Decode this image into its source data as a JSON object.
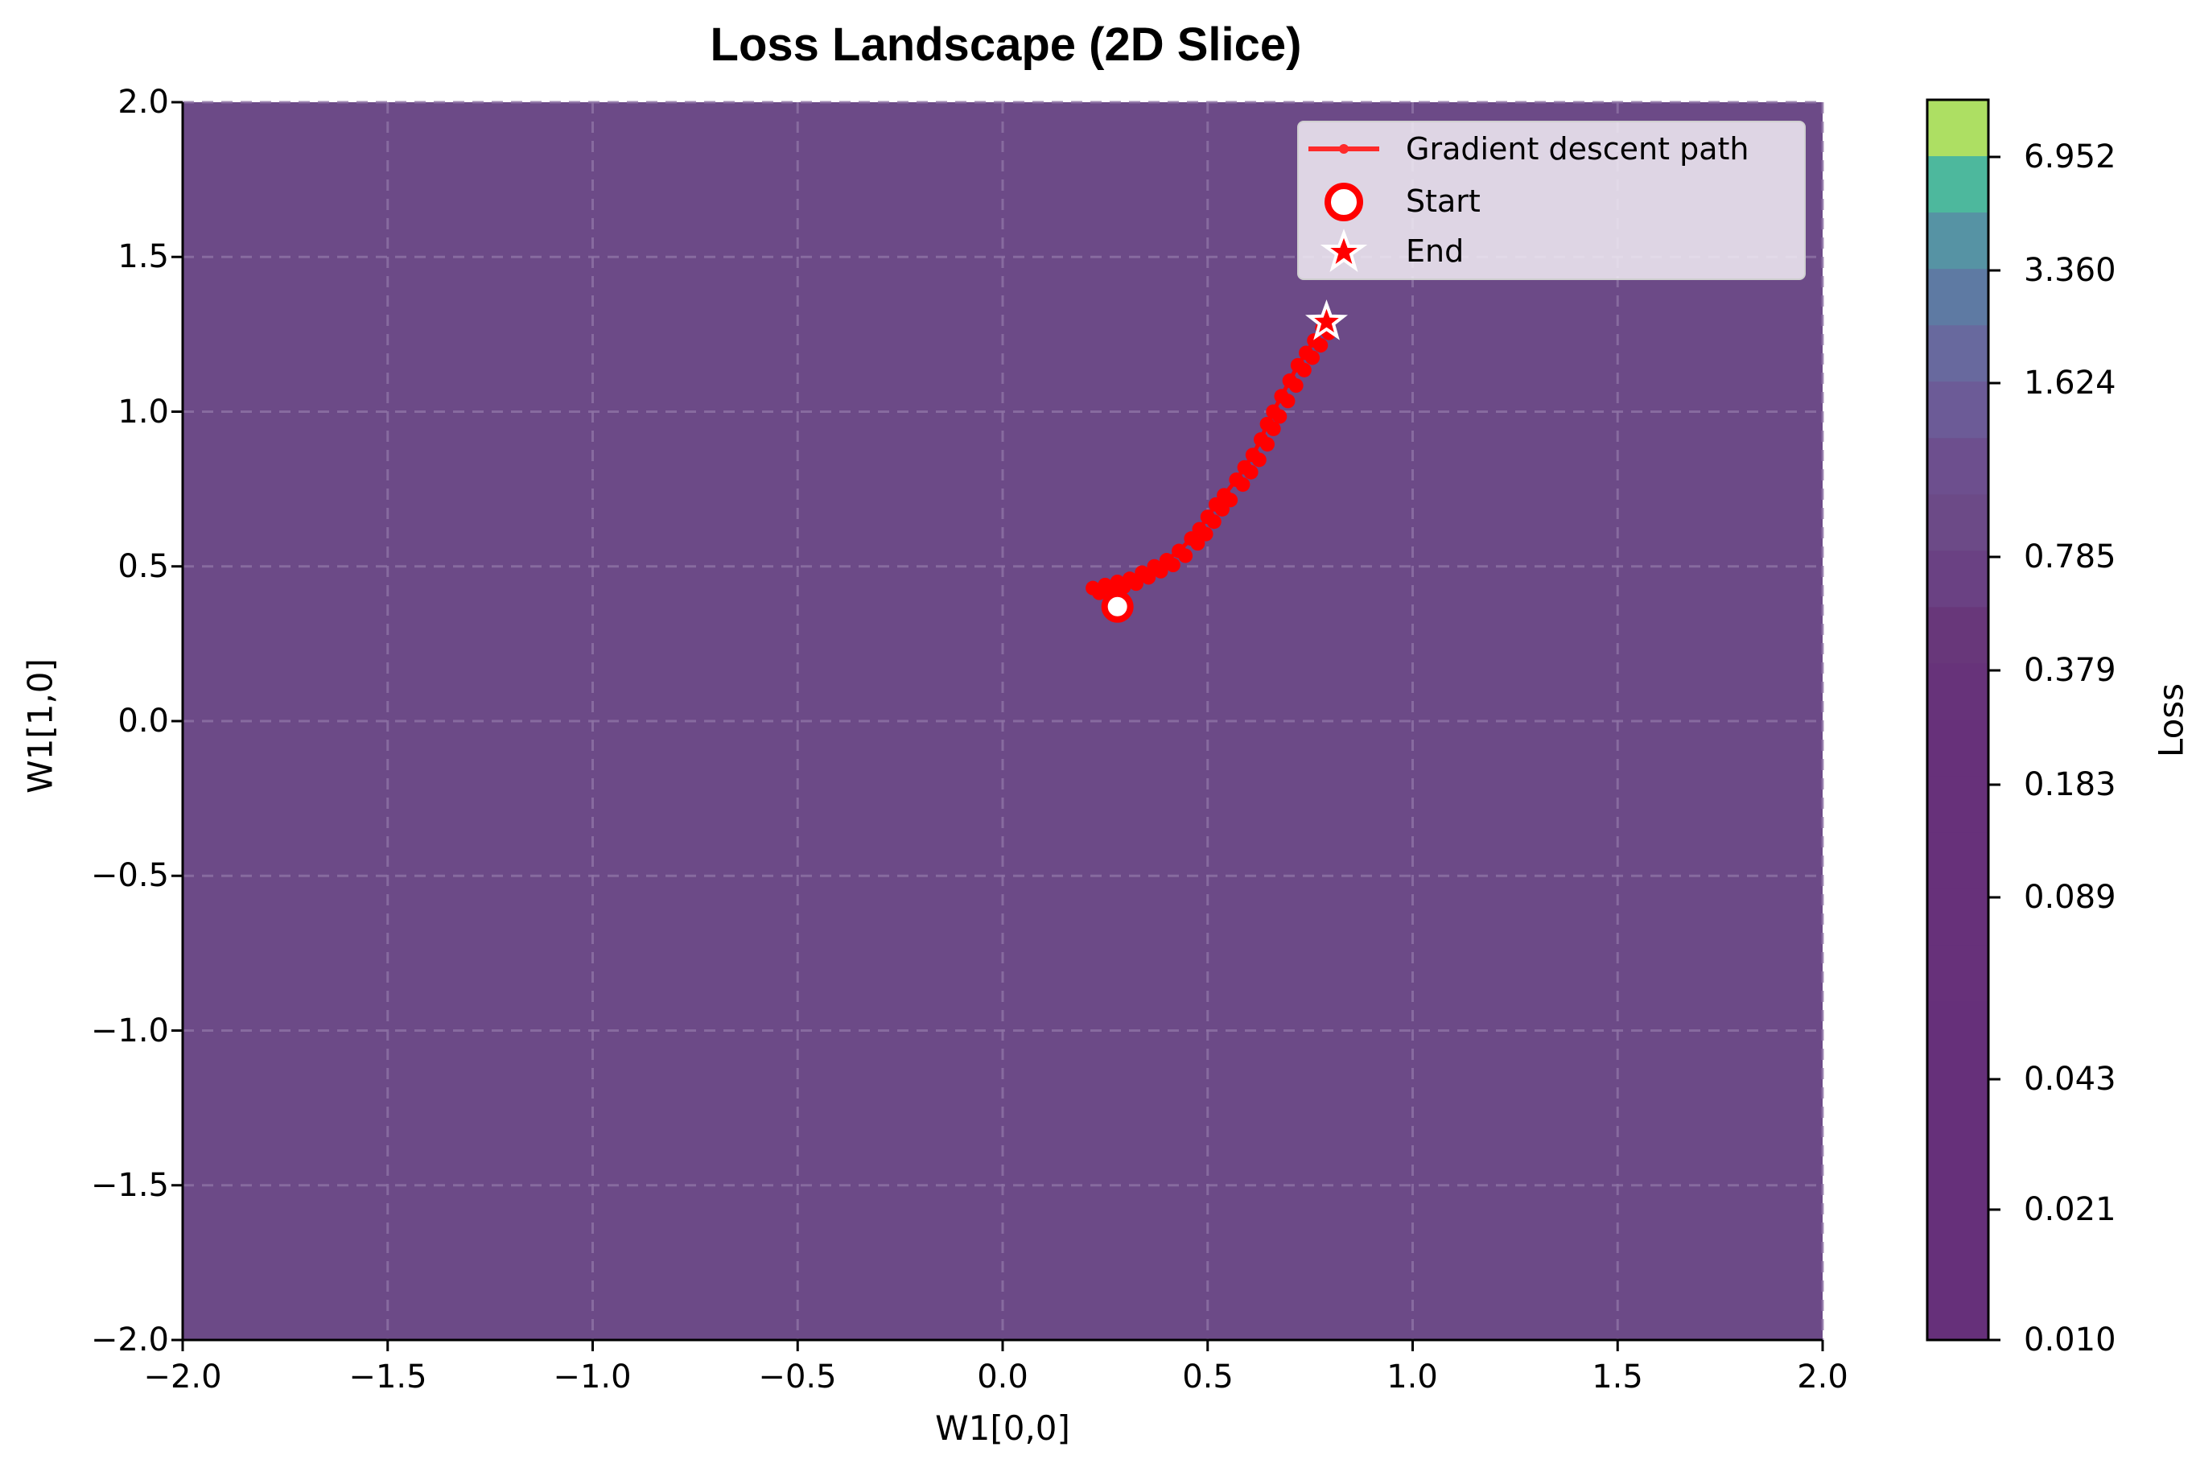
{
  "title": "Loss Landscape (2D Slice)",
  "xlabel": "W1[0,0]",
  "ylabel": "W1[1,0]",
  "x_ticks": [
    "−2.0",
    "−1.5",
    "−1.0",
    "−0.5",
    "0.0",
    "0.5",
    "1.0",
    "1.5",
    "2.0"
  ],
  "y_ticks": [
    "2.0",
    "1.5",
    "1.0",
    "0.5",
    "0.0",
    "−0.5",
    "−1.0",
    "−1.5",
    "−2.0"
  ],
  "legend": {
    "items": [
      {
        "label": "Gradient descent path",
        "symbol": "red-line-with-dot"
      },
      {
        "label": "Start",
        "symbol": "white-circle-red-edge"
      },
      {
        "label": "End",
        "symbol": "red-star-white-edge"
      }
    ]
  },
  "colorbar": {
    "label": "Loss",
    "ticks": [
      "6.952",
      "3.360",
      "1.624",
      "0.785",
      "0.379",
      "0.183",
      "0.089",
      "0.043",
      "0.021",
      "0.010"
    ],
    "band_colors": [
      "#addf63",
      "#4db89d",
      "#5693a4",
      "#5e7aa3",
      "#68699e",
      "#6c5b97",
      "#6d4f8e",
      "#6c4a87",
      "#6a4183",
      "#68377a",
      "#67337a",
      "#67317a",
      "#67317a",
      "#67317a",
      "#67317a",
      "#67317a",
      "#66307a",
      "#66307a",
      "#66307a",
      "#66307a",
      "#66307a",
      "#66307a"
    ]
  },
  "colors": {
    "background": "#6c4a87",
    "grid": "#8e74a5",
    "path": "#ff0000",
    "legend_bg": "#e1d9e7"
  },
  "chart_data": {
    "type": "contour+line",
    "title": "Loss Landscape (2D Slice)",
    "xlabel": "W1[0,0]",
    "ylabel": "W1[1,0]",
    "xlim": [
      -2.0,
      2.0
    ],
    "ylim": [
      -2.0,
      2.0
    ],
    "grid": true,
    "legend_position": "upper right",
    "colorbar": {
      "label": "Loss",
      "ticks": [
        0.01,
        0.021,
        0.043,
        0.089,
        0.183,
        0.379,
        0.785,
        1.624,
        3.36,
        6.952
      ],
      "scale": "log"
    },
    "contour_fill_visible_level": "approx 0.5-0.8 (uniform purple across plot)",
    "series": [
      {
        "name": "Gradient descent path",
        "type": "line",
        "x": [
          0.22,
          0.25,
          0.28,
          0.31,
          0.34,
          0.37,
          0.4,
          0.43,
          0.46,
          0.48,
          0.5,
          0.52,
          0.54,
          0.57,
          0.59,
          0.61,
          0.63,
          0.645,
          0.66,
          0.68,
          0.7,
          0.72,
          0.74,
          0.76,
          0.78
        ],
        "y": [
          0.43,
          0.44,
          0.45,
          0.46,
          0.48,
          0.5,
          0.52,
          0.55,
          0.59,
          0.62,
          0.66,
          0.7,
          0.73,
          0.78,
          0.82,
          0.86,
          0.91,
          0.96,
          1.0,
          1.05,
          1.1,
          1.15,
          1.19,
          1.23,
          1.27
        ]
      },
      {
        "name": "Start",
        "type": "scatter",
        "x": [
          0.28
        ],
        "y": [
          0.37
        ]
      },
      {
        "name": "End",
        "type": "scatter",
        "x": [
          0.79
        ],
        "y": [
          1.29
        ]
      }
    ]
  }
}
